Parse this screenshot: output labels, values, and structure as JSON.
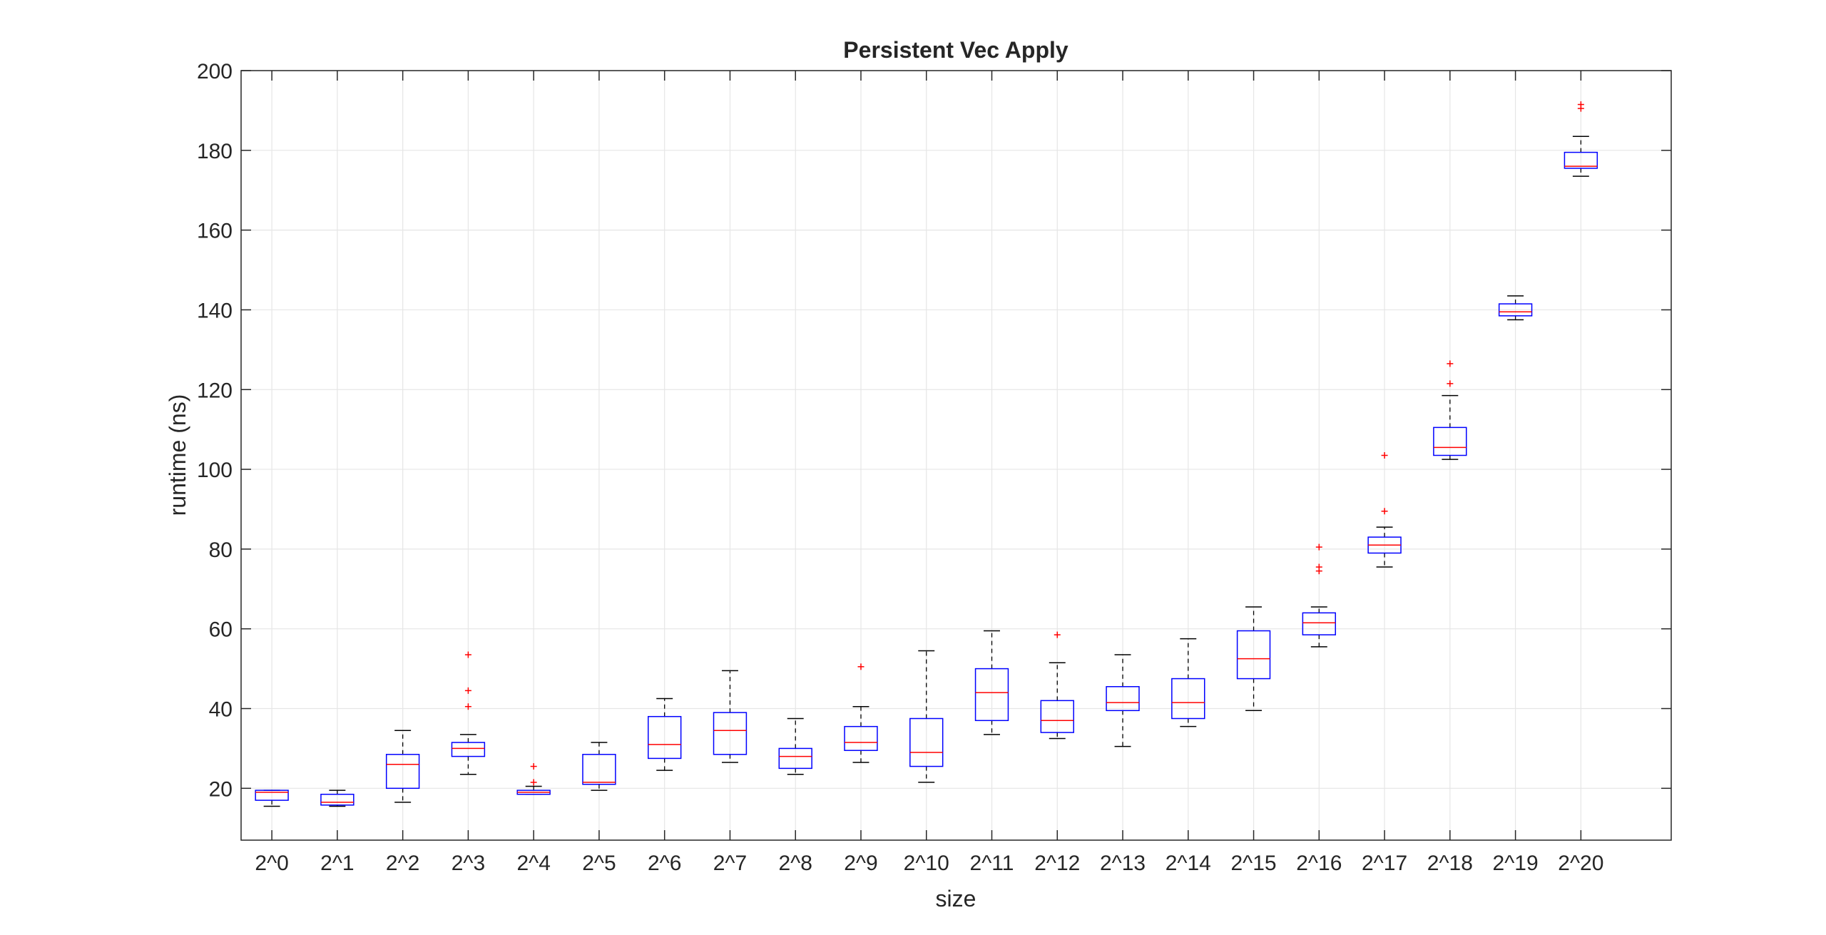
{
  "chart_data": {
    "type": "boxplot",
    "title": "Persistent Vec Apply",
    "xlabel": "size",
    "ylabel": "runtime (ns)",
    "ylim": [
      7,
      200
    ],
    "yticks": [
      20,
      40,
      60,
      80,
      100,
      120,
      140,
      160,
      180,
      200
    ],
    "grid": true,
    "legend": "none",
    "colors": {
      "box": "#0000ff",
      "median": "#ff0000",
      "whisker": "#000000",
      "outlier": "#ff0000",
      "grid": "#e6e6e6",
      "axis": "#262626"
    },
    "categories": [
      "2^0",
      "2^1",
      "2^2",
      "2^3",
      "2^4",
      "2^5",
      "2^6",
      "2^7",
      "2^8",
      "2^9",
      "2^10",
      "2^11",
      "2^12",
      "2^13",
      "2^14",
      "2^15",
      "2^16",
      "2^17",
      "2^18",
      "2^19",
      "2^20"
    ],
    "boxes": [
      {
        "min": 15.5,
        "q1": 17.0,
        "median": 19.0,
        "q3": 19.5,
        "max": 19.5,
        "outliers": []
      },
      {
        "min": 15.5,
        "q1": 15.8,
        "median": 16.5,
        "q3": 18.5,
        "max": 19.5,
        "outliers": []
      },
      {
        "min": 16.5,
        "q1": 20.0,
        "median": 26.0,
        "q3": 28.5,
        "max": 34.5,
        "outliers": []
      },
      {
        "min": 23.5,
        "q1": 28.0,
        "median": 30.0,
        "q3": 31.5,
        "max": 33.5,
        "outliers": [
          40.5,
          44.5,
          53.5
        ]
      },
      {
        "min": 18.5,
        "q1": 18.5,
        "median": 19.0,
        "q3": 19.5,
        "max": 20.5,
        "outliers": [
          21.5,
          25.5
        ]
      },
      {
        "min": 19.5,
        "q1": 21.0,
        "median": 21.5,
        "q3": 28.5,
        "max": 31.5,
        "outliers": []
      },
      {
        "min": 24.5,
        "q1": 27.5,
        "median": 31.0,
        "q3": 38.0,
        "max": 42.5,
        "outliers": []
      },
      {
        "min": 26.5,
        "q1": 28.5,
        "median": 34.5,
        "q3": 39.0,
        "max": 49.5,
        "outliers": []
      },
      {
        "min": 23.5,
        "q1": 25.0,
        "median": 28.0,
        "q3": 30.0,
        "max": 37.5,
        "outliers": []
      },
      {
        "min": 26.5,
        "q1": 29.5,
        "median": 31.5,
        "q3": 35.5,
        "max": 40.5,
        "outliers": [
          50.5
        ]
      },
      {
        "min": 21.5,
        "q1": 25.5,
        "median": 29.0,
        "q3": 37.5,
        "max": 54.5,
        "outliers": []
      },
      {
        "min": 33.5,
        "q1": 37.0,
        "median": 44.0,
        "q3": 50.0,
        "max": 59.5,
        "outliers": []
      },
      {
        "min": 32.5,
        "q1": 34.0,
        "median": 37.0,
        "q3": 42.0,
        "max": 51.5,
        "outliers": [
          58.5
        ]
      },
      {
        "min": 30.5,
        "q1": 39.5,
        "median": 41.5,
        "q3": 45.5,
        "max": 53.5,
        "outliers": []
      },
      {
        "min": 35.5,
        "q1": 37.5,
        "median": 41.5,
        "q3": 47.5,
        "max": 57.5,
        "outliers": []
      },
      {
        "min": 39.5,
        "q1": 47.5,
        "median": 52.5,
        "q3": 59.5,
        "max": 65.5,
        "outliers": []
      },
      {
        "min": 55.5,
        "q1": 58.5,
        "median": 61.5,
        "q3": 64.0,
        "max": 65.5,
        "outliers": [
          74.5,
          75.5,
          80.5
        ]
      },
      {
        "min": 75.5,
        "q1": 79.0,
        "median": 81.0,
        "q3": 83.0,
        "max": 85.5,
        "outliers": [
          89.5,
          103.5
        ]
      },
      {
        "min": 102.5,
        "q1": 103.5,
        "median": 105.5,
        "q3": 110.5,
        "max": 118.5,
        "outliers": [
          121.5,
          126.5
        ]
      },
      {
        "min": 137.5,
        "q1": 138.5,
        "median": 139.5,
        "q3": 141.5,
        "max": 143.5,
        "outliers": []
      },
      {
        "min": 173.5,
        "q1": 175.5,
        "median": 176.0,
        "q3": 179.5,
        "max": 183.5,
        "outliers": [
          190.5,
          191.5
        ]
      }
    ]
  }
}
